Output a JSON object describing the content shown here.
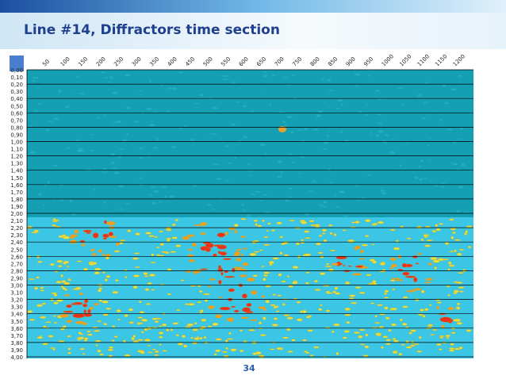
{
  "header": {
    "title": "Line #14, Diffractors time section"
  },
  "image": {
    "x_labels": [
      "50",
      "100",
      "150",
      "200",
      "250",
      "300",
      "350",
      "400",
      "450",
      "500",
      "550",
      "600",
      "650",
      "700",
      "750",
      "800",
      "850",
      "900",
      "950",
      "1000",
      "1050",
      "1100",
      "1150",
      "1200"
    ],
    "y_labels": [
      "0,00",
      "0,10",
      "0,20",
      "0,30",
      "0,40",
      "0,50",
      "0,60",
      "0,70",
      "0,80",
      "0,90",
      "1,00",
      "1,10",
      "1,20",
      "1,30",
      "1,40",
      "1,50",
      "1,60",
      "1,70",
      "1,80",
      "1,90",
      "2,00",
      "2,10",
      "2,20",
      "2,30",
      "2,40",
      "2,50",
      "2,60",
      "2,70",
      "2,80",
      "2,90",
      "3,00",
      "3,10",
      "3,20",
      "3,30",
      "3,40",
      "3,50",
      "3,60",
      "3,70",
      "3,80",
      "3,90",
      "4,00"
    ]
  },
  "footer": {
    "page_number": "34"
  }
}
